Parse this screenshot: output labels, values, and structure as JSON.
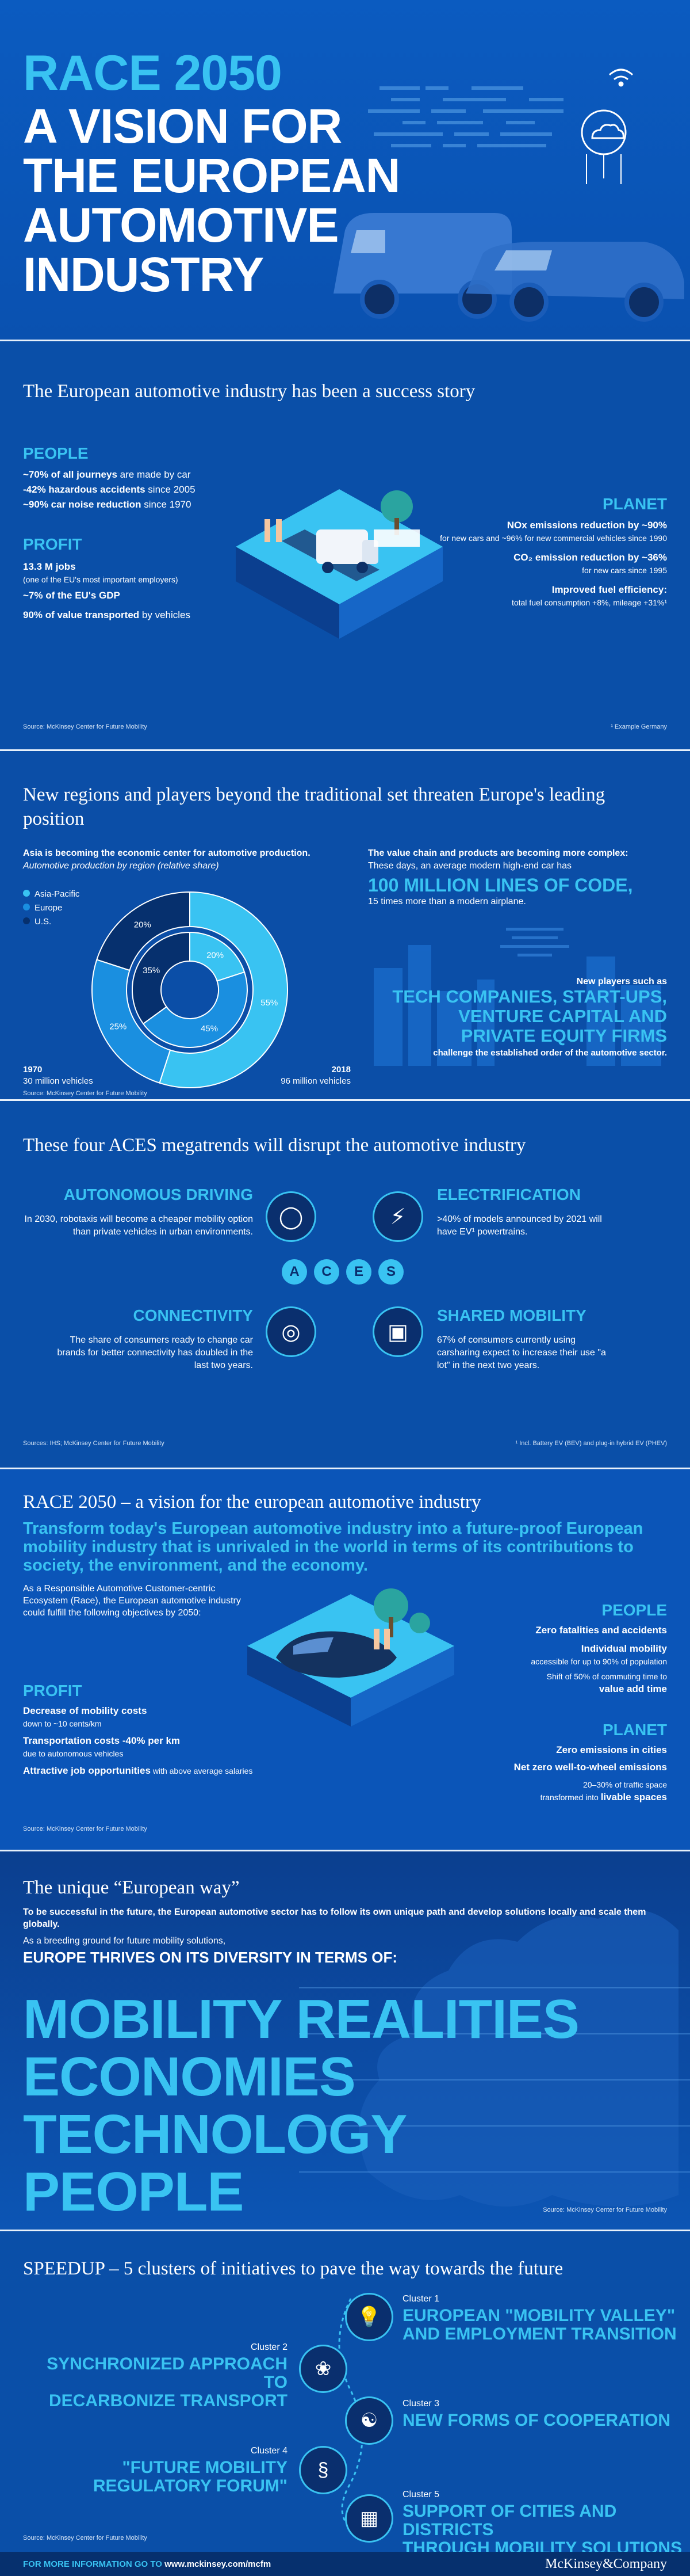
{
  "colors": {
    "accent": "#39c3f2",
    "background": "#0a4fa8",
    "dark_navy": "#0a2f6e",
    "footer": "#06306e"
  },
  "hero": {
    "line1": "RACE 2050",
    "line2": "A VISION FOR",
    "line3": "THE EUROPEAN",
    "line4": "AUTOMOTIVE",
    "line5": "INDUSTRY"
  },
  "success": {
    "heading": "The European automotive industry has been a success story",
    "people": {
      "title": "PEOPLE",
      "l1_b": "~70% of all journeys",
      "l1_r": " are made by car",
      "l2_b": "-42% hazardous accidents",
      "l2_r": " since 2005",
      "l3_b": "~90% car noise reduction",
      "l3_r": " since 1970"
    },
    "profit": {
      "title": "PROFIT",
      "l1_b": "13.3 M jobs",
      "l1_r": "(one of the EU's most important employers)",
      "l2": "~7% of the EU's GDP",
      "l3_b": "90% of value transported",
      "l3_r": " by vehicles"
    },
    "planet": {
      "title": "PLANET",
      "l1_b": "NOx emissions reduction by ~90%",
      "l1_r": "for new cars and ~96% for new commercial vehicles since 1990",
      "l2_b": "CO₂ emission reduction by ~36%",
      "l2_r": "for new cars since 1995",
      "l3_b": "Improved fuel efficiency:",
      "l3_r": "total fuel consumption +8%, mileage +31%¹"
    },
    "source": "Source: McKinsey Center for Future Mobility",
    "footnote": "¹ Example Germany"
  },
  "threats": {
    "heading": "New regions and players beyond the traditional set threaten Europe's leading position",
    "asia_b": "Asia is becoming the economic center for automotive production.",
    "asia_i": "Automotive production by region (relative share)",
    "legend": [
      "Asia-Pacific",
      "Europe",
      "U.S."
    ],
    "year1": "1970",
    "vol1": "30 million vehicles",
    "year2": "2018",
    "vol2": "96 million vehicles",
    "value_b": "The value chain and products are becoming more complex:",
    "value_r": "These days, an average modern high-end car has",
    "lines_big": "100 MILLION LINES OF CODE,",
    "lines_r": "15 times more than a modern airplane.",
    "players_r": "New players such as",
    "players_big1": "TECH COMPANIES, START-UPS,",
    "players_big2": "VENTURE CAPITAL AND",
    "players_big3": "PRIVATE EQUITY FIRMS",
    "players_end": "challenge the established order of the automotive sector.",
    "source": "Source: McKinsey Center for Future Mobility"
  },
  "chart_data": {
    "type": "pie",
    "title": "Automotive production by region (relative share)",
    "series": [
      {
        "name": "1970",
        "categories": [
          "Asia-Pacific",
          "Europe",
          "U.S."
        ],
        "values": [
          20,
          45,
          35
        ]
      },
      {
        "name": "2018",
        "categories": [
          "Asia-Pacific",
          "Europe",
          "U.S."
        ],
        "values": [
          55,
          25,
          20
        ]
      }
    ],
    "labels": [
      "Asia-Pacific",
      "Europe",
      "U.S."
    ],
    "colors": [
      "#39c3f2",
      "#1a8fe0",
      "#06306e"
    ]
  },
  "aces": {
    "heading": "These four ACES megatrends will disrupt the automotive industry",
    "letters": [
      "A",
      "C",
      "E",
      "S"
    ],
    "auto_t": "AUTONOMOUS DRIVING",
    "auto_b": "In 2030, robotaxis will become a cheaper mobility option than private vehicles in urban environments.",
    "elec_t": "ELECTRIFICATION",
    "elec_b": ">40% of models announced by 2021 will have EV¹ powertrains.",
    "conn_t": "CONNECTIVITY",
    "conn_b": "The share of consumers ready to change car brands for better connectivity has doubled in the last two years.",
    "share_t": "SHARED MOBILITY",
    "share_b": "67% of consumers currently using carsharing expect to increase their use \"a lot\" in the next two years.",
    "source": "Sources: IHS; McKinsey Center for Future Mobility",
    "footnote": "¹ Incl. Battery EV (BEV) and plug-in hybrid EV (PHEV)"
  },
  "race": {
    "heading": "RACE 2050 – a vision for the european automotive industry",
    "subheading": "Transform today's European automotive industry into a future-proof European mobility industry that is unrivaled in the world in terms of its contributions to society, the environment, and the economy.",
    "intro": "As a Responsible Automotive Customer-centric Ecosystem (Race), the European automotive industry could fulfill the following objectives by 2050:",
    "people_t": "PEOPLE",
    "p1": "Zero fatalities and accidents",
    "p2": "Individual mobility",
    "p2s": "accessible for up to 90% of population",
    "p3": "Shift of 50% of commuting time to",
    "p3b": "value add time",
    "profit_t": "PROFIT",
    "f1": "Decrease of mobility costs",
    "f1s": "down to ~10 cents/km",
    "f2": "Transportation costs -40% per km",
    "f2s": "due to autonomous vehicles",
    "f3": "Attractive job opportunities",
    "f3s": " with above average salaries",
    "planet_t": "PLANET",
    "n1": "Zero emissions in cities",
    "n2": "Net zero well-to-wheel emissions",
    "n3": "20–30% of traffic space",
    "n3b": "transformed into ",
    "n3c": "livable spaces",
    "source": "Source: McKinsey Center for Future Mobility"
  },
  "euroway": {
    "heading": "The unique “European way”",
    "b1": "To be successful in the future, the European automotive sector has to follow its own unique path and develop solutions locally and scale them globally.",
    "b2": "As a breeding ground for future mobility solutions,",
    "b3": "EUROPE THRIVES ON ITS DIVERSITY IN TERMS OF:",
    "words": [
      "MOBILITY REALITIES",
      "ECONOMIES",
      "TECHNOLOGY",
      "PEOPLE"
    ],
    "source": "Source: McKinsey Center for Future Mobility"
  },
  "speedup": {
    "heading": "SPEEDUP – 5 clusters of initiatives to pave the way towards the future",
    "c1_l": "Cluster 1",
    "c1_t1": "EUROPEAN \"MOBILITY VALLEY\"",
    "c1_t2": "AND EMPLOYMENT TRANSITION",
    "c2_l": "Cluster 2",
    "c2_t1": "SYNCHRONIZED APPROACH TO",
    "c2_t2": "DECARBONIZE TRANSPORT",
    "c3_l": "Cluster 3",
    "c3_t1": "NEW FORMS OF COOPERATION",
    "c4_l": "Cluster 4",
    "c4_t1": "\"FUTURE MOBILITY",
    "c4_t2": "REGULATORY FORUM\"",
    "c5_l": "Cluster 5",
    "c5_t1": "SUPPORT OF CITIES AND DISTRICTS",
    "c5_t2": "THROUGH MOBILITY SOLUTIONS",
    "source": "Source: McKinsey Center for Future Mobility"
  },
  "footer": {
    "info_prefix": "FOR MORE INFORMATION GO TO ",
    "url": "www.mckinsey.com/mcfm",
    "brand": "McKinsey&Company"
  }
}
